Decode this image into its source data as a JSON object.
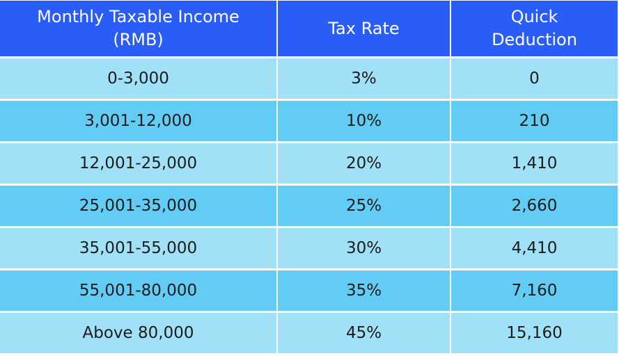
{
  "table": {
    "header": [
      "Monthly Taxable Income (RMB)",
      "Tax Rate",
      "Quick Deduction"
    ],
    "rows": [
      [
        "0-3,000",
        "3%",
        "0"
      ],
      [
        "3,001-12,000",
        "10%",
        "210"
      ],
      [
        "12,001-25,000",
        "20%",
        "1,410"
      ],
      [
        "25,001-35,000",
        "25%",
        "2,660"
      ],
      [
        "35,001-55,000",
        "30%",
        "4,410"
      ],
      [
        "55,001-80,000",
        "35%",
        "7,160"
      ],
      [
        "Above 80,000",
        "45%",
        "15,160"
      ]
    ]
  }
}
